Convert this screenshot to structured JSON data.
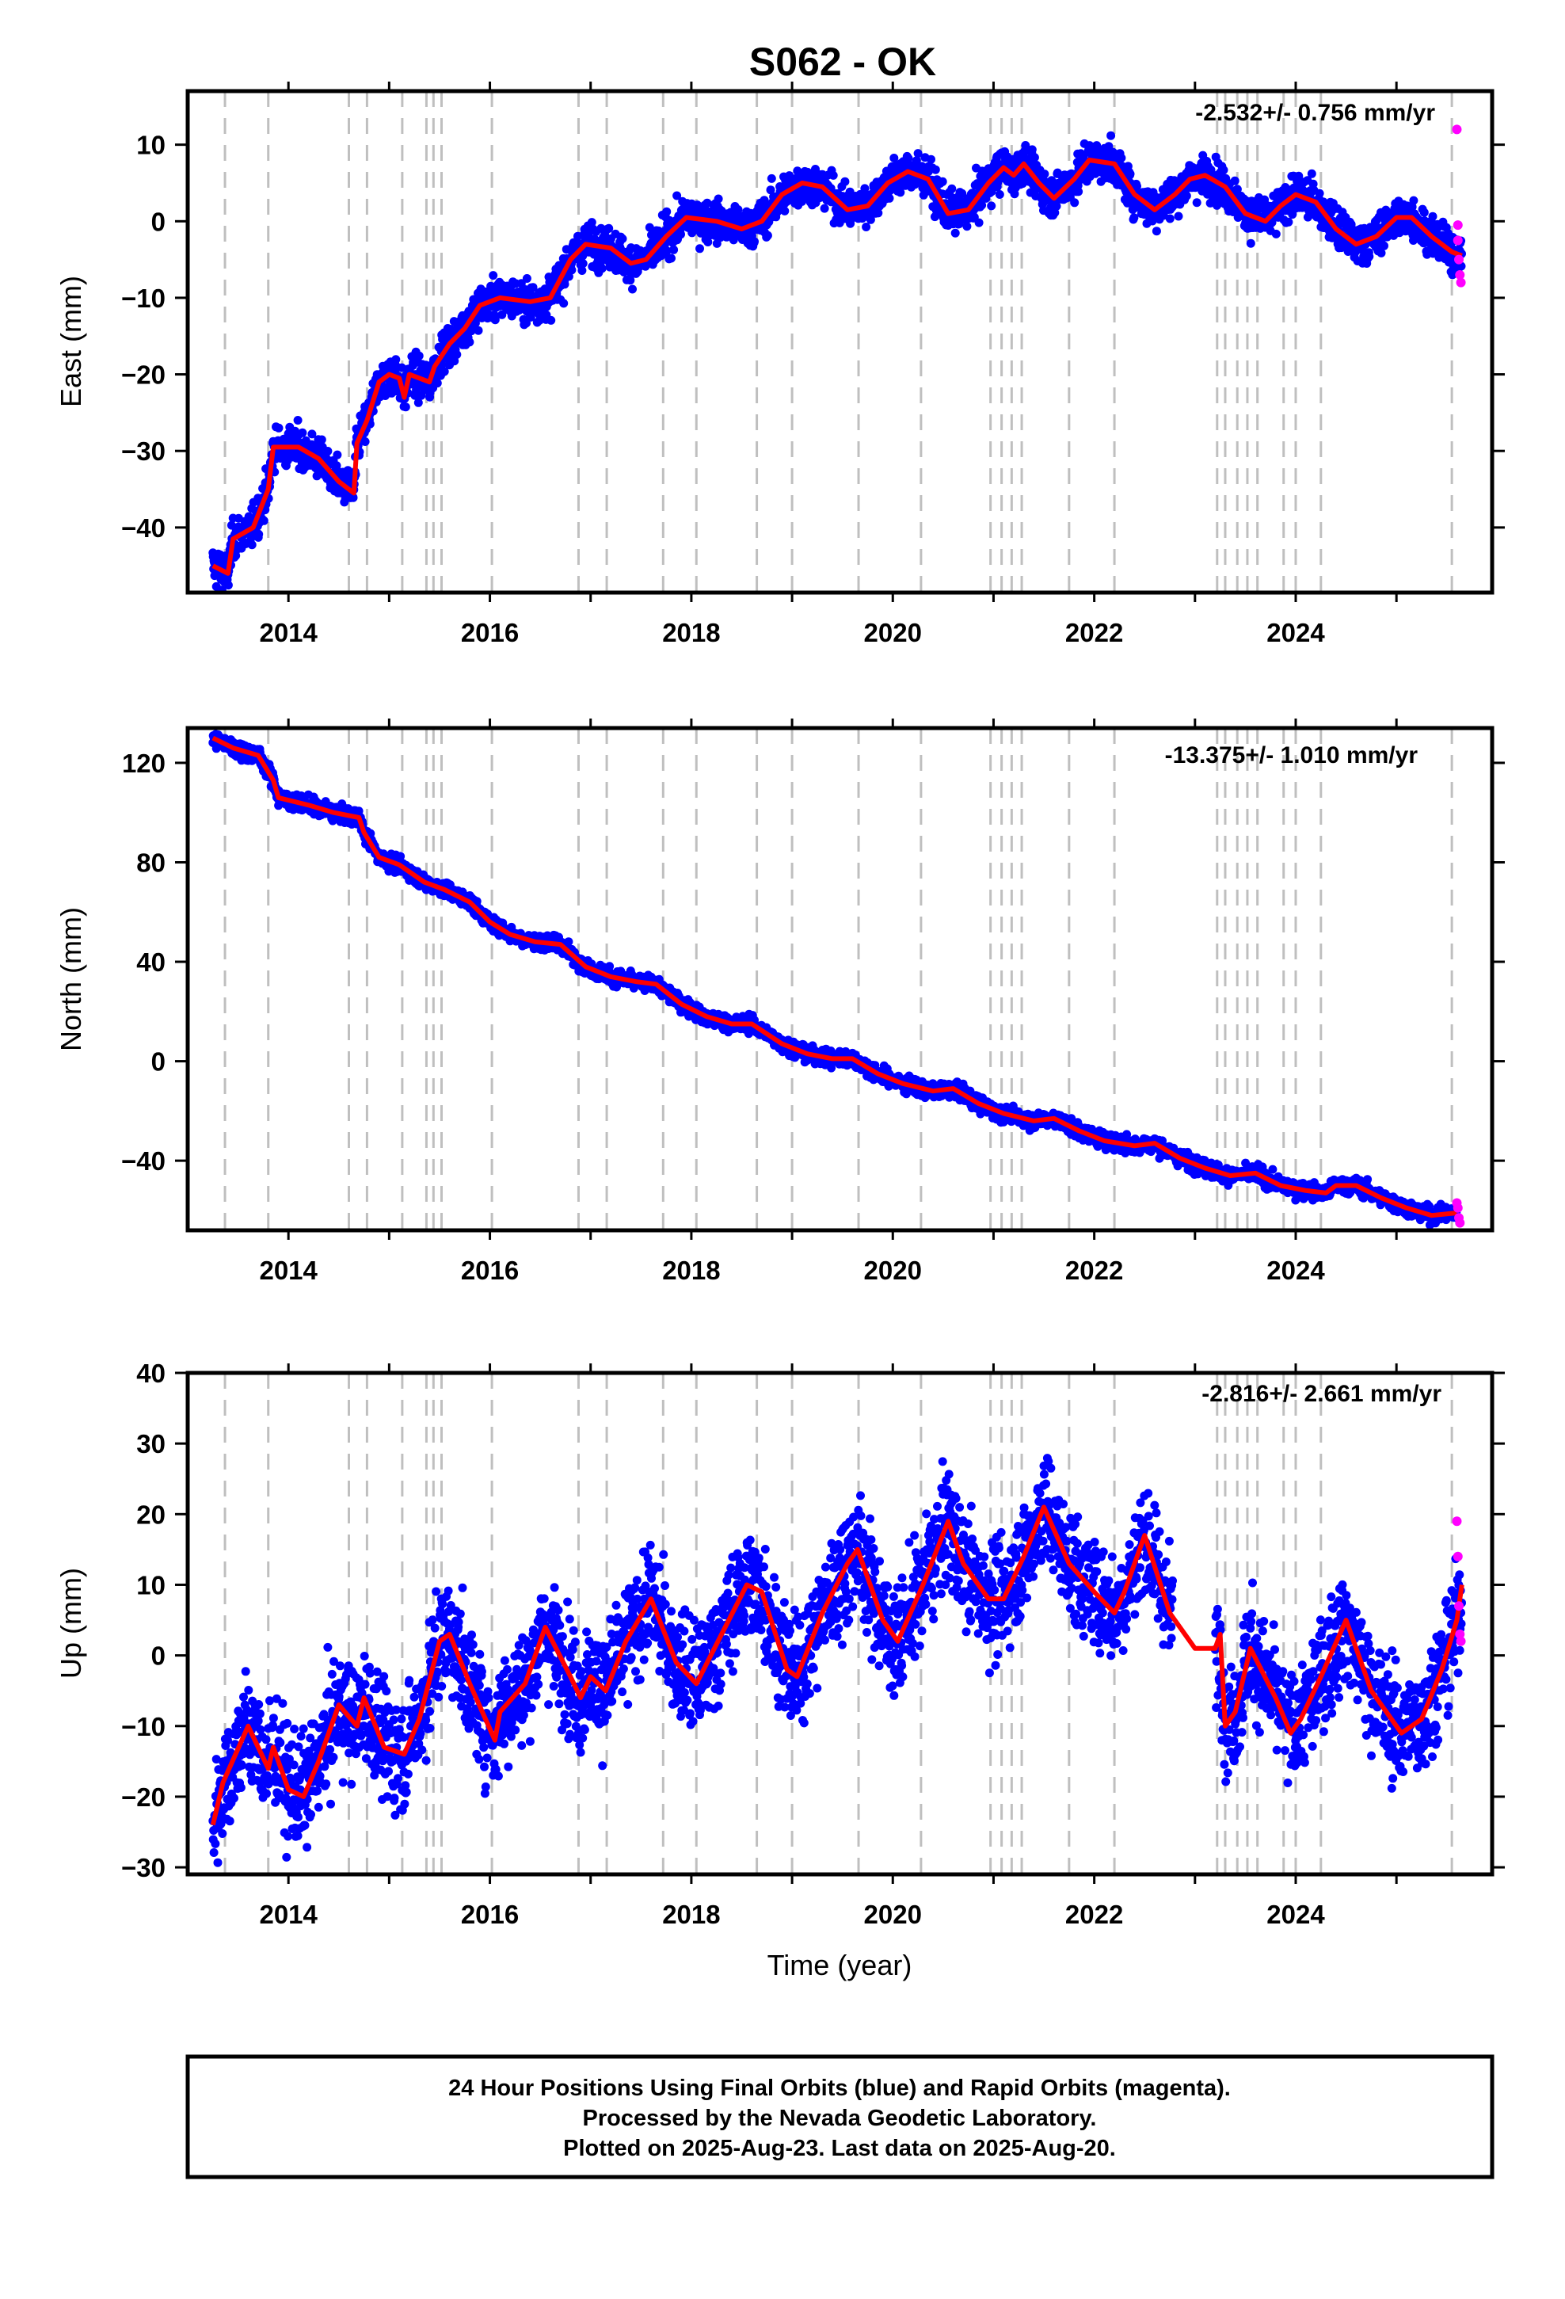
{
  "title": "S062 - OK",
  "x_axis_label": "Time (year)",
  "footer": {
    "line1": "24 Hour Positions Using Final Orbits (blue) and Rapid Orbits (magenta).",
    "line2": "Processed by the Nevada Geodetic Laboratory.",
    "line3": "Plotted on 2025-Aug-23. Last data on 2025-Aug-20."
  },
  "colors": {
    "final": "#0000ff",
    "rapid": "#ff00ff",
    "model": "#ff0000",
    "events": "#bfbfbf"
  },
  "chart_data": [
    {
      "type": "scatter",
      "panel": "east",
      "ylabel": "East (mm)",
      "rate": "-2.532+/- 0.756 mm/yr",
      "xlim": [
        2013.0,
        2025.95
      ],
      "ylim": [
        -48.5,
        17
      ],
      "xticks": [
        2014,
        2016,
        2018,
        2020,
        2022,
        2024
      ],
      "yticks": [
        -40,
        -30,
        -20,
        -10,
        0,
        10
      ],
      "trend": [
        [
          2013.25,
          -45
        ],
        [
          2013.4,
          -46
        ],
        [
          2013.45,
          -41.5
        ],
        [
          2013.65,
          -40
        ],
        [
          2013.8,
          -35
        ],
        [
          2013.85,
          -29.5
        ],
        [
          2014.1,
          -29.5
        ],
        [
          2014.3,
          -31
        ],
        [
          2014.5,
          -34
        ],
        [
          2014.65,
          -35.5
        ],
        [
          2014.68,
          -29
        ],
        [
          2014.78,
          -26
        ],
        [
          2014.9,
          -21
        ],
        [
          2015.0,
          -20
        ],
        [
          2015.1,
          -20.5
        ],
        [
          2015.15,
          -23
        ],
        [
          2015.2,
          -20
        ],
        [
          2015.4,
          -21
        ],
        [
          2015.45,
          -19
        ],
        [
          2015.6,
          -16
        ],
        [
          2015.75,
          -14
        ],
        [
          2015.9,
          -11
        ],
        [
          2016.1,
          -10
        ],
        [
          2016.4,
          -10.5
        ],
        [
          2016.6,
          -10
        ],
        [
          2016.8,
          -5
        ],
        [
          2016.95,
          -3
        ],
        [
          2017.2,
          -3.5
        ],
        [
          2017.4,
          -5.5
        ],
        [
          2017.55,
          -5
        ],
        [
          2017.75,
          -2
        ],
        [
          2017.95,
          0.5
        ],
        [
          2018.25,
          0
        ],
        [
          2018.5,
          -1
        ],
        [
          2018.7,
          0
        ],
        [
          2018.9,
          3.5
        ],
        [
          2019.1,
          5
        ],
        [
          2019.3,
          4.5
        ],
        [
          2019.55,
          1.5
        ],
        [
          2019.75,
          2
        ],
        [
          2019.95,
          5
        ],
        [
          2020.15,
          6.5
        ],
        [
          2020.35,
          5.5
        ],
        [
          2020.55,
          1
        ],
        [
          2020.75,
          1.5
        ],
        [
          2020.95,
          5
        ],
        [
          2021.1,
          7
        ],
        [
          2021.2,
          6
        ],
        [
          2021.3,
          7.5
        ],
        [
          2021.45,
          5
        ],
        [
          2021.6,
          3
        ],
        [
          2021.8,
          5.5
        ],
        [
          2021.95,
          8
        ],
        [
          2022.2,
          7.5
        ],
        [
          2022.4,
          3.5
        ],
        [
          2022.6,
          1.5
        ],
        [
          2022.8,
          3.5
        ],
        [
          2022.95,
          5.5
        ],
        [
          2023.1,
          6
        ],
        [
          2023.3,
          4.5
        ],
        [
          2023.5,
          1
        ],
        [
          2023.7,
          0
        ],
        [
          2023.85,
          2
        ],
        [
          2024.0,
          3.5
        ],
        [
          2024.2,
          2.5
        ],
        [
          2024.4,
          -1
        ],
        [
          2024.6,
          -3
        ],
        [
          2024.8,
          -2
        ],
        [
          2025.0,
          0.5
        ],
        [
          2025.15,
          0.5
        ],
        [
          2025.35,
          -2
        ],
        [
          2025.55,
          -4
        ],
        [
          2025.65,
          -4.5
        ]
      ],
      "rapid": [
        [
          2025.6,
          12
        ],
        [
          2025.61,
          -0.5
        ],
        [
          2025.61,
          -2.5
        ],
        [
          2025.62,
          -5
        ],
        [
          2025.63,
          -7
        ],
        [
          2025.64,
          -8
        ]
      ]
    },
    {
      "type": "scatter",
      "panel": "north",
      "ylabel": "North (mm)",
      "rate": "-13.375+/- 1.010 mm/yr",
      "xlim": [
        2013.0,
        2025.95
      ],
      "ylim": [
        -68,
        134
      ],
      "xticks": [
        2014,
        2016,
        2018,
        2020,
        2022,
        2024
      ],
      "yticks": [
        -40,
        0,
        40,
        80,
        120
      ],
      "trend": [
        [
          2013.25,
          130
        ],
        [
          2013.45,
          126
        ],
        [
          2013.7,
          123
        ],
        [
          2013.85,
          113
        ],
        [
          2013.9,
          106
        ],
        [
          2014.2,
          103
        ],
        [
          2014.45,
          100
        ],
        [
          2014.7,
          98
        ],
        [
          2014.75,
          92
        ],
        [
          2014.9,
          82
        ],
        [
          2015.1,
          79
        ],
        [
          2015.35,
          72
        ],
        [
          2015.55,
          69
        ],
        [
          2015.8,
          64
        ],
        [
          2016.0,
          56
        ],
        [
          2016.2,
          51
        ],
        [
          2016.45,
          48
        ],
        [
          2016.7,
          47
        ],
        [
          2016.95,
          38
        ],
        [
          2017.2,
          34
        ],
        [
          2017.45,
          32
        ],
        [
          2017.65,
          31
        ],
        [
          2017.9,
          23
        ],
        [
          2018.15,
          18
        ],
        [
          2018.4,
          15
        ],
        [
          2018.6,
          15
        ],
        [
          2018.9,
          7
        ],
        [
          2019.15,
          3
        ],
        [
          2019.4,
          1
        ],
        [
          2019.6,
          1
        ],
        [
          2019.85,
          -5
        ],
        [
          2020.1,
          -9
        ],
        [
          2020.4,
          -12
        ],
        [
          2020.6,
          -11
        ],
        [
          2020.85,
          -17
        ],
        [
          2021.1,
          -21
        ],
        [
          2021.4,
          -24
        ],
        [
          2021.6,
          -23
        ],
        [
          2021.85,
          -28
        ],
        [
          2022.1,
          -32
        ],
        [
          2022.4,
          -34
        ],
        [
          2022.6,
          -33
        ],
        [
          2022.85,
          -39
        ],
        [
          2023.1,
          -43
        ],
        [
          2023.35,
          -46
        ],
        [
          2023.6,
          -45
        ],
        [
          2023.85,
          -50
        ],
        [
          2024.1,
          -52
        ],
        [
          2024.3,
          -53
        ],
        [
          2024.4,
          -50
        ],
        [
          2024.6,
          -50
        ],
        [
          2024.85,
          -55
        ],
        [
          2025.1,
          -59
        ],
        [
          2025.35,
          -62
        ],
        [
          2025.6,
          -61
        ]
      ],
      "rapid": [
        [
          2025.6,
          -57
        ],
        [
          2025.61,
          -59
        ],
        [
          2025.62,
          -63
        ],
        [
          2025.63,
          -65
        ]
      ]
    },
    {
      "type": "scatter",
      "panel": "up",
      "ylabel": "Up (mm)",
      "rate": "-2.816+/- 2.661 mm/yr",
      "xlim": [
        2013.0,
        2025.95
      ],
      "ylim": [
        -31,
        40
      ],
      "xticks": [
        2014,
        2016,
        2018,
        2020,
        2022,
        2024
      ],
      "yticks": [
        -30,
        -20,
        -10,
        0,
        10,
        20,
        30,
        40
      ],
      "trend": [
        [
          2013.25,
          -24
        ],
        [
          2013.35,
          -18
        ],
        [
          2013.6,
          -10
        ],
        [
          2013.8,
          -16
        ],
        [
          2013.85,
          -13
        ],
        [
          2014.0,
          -19
        ],
        [
          2014.15,
          -20
        ],
        [
          2014.3,
          -15
        ],
        [
          2014.5,
          -7
        ],
        [
          2014.68,
          -10
        ],
        [
          2014.75,
          -6
        ],
        [
          2014.95,
          -13
        ],
        [
          2015.15,
          -14
        ],
        [
          2015.3,
          -9
        ],
        [
          2015.5,
          2
        ],
        [
          2015.6,
          3
        ],
        [
          2015.8,
          -4
        ],
        [
          2016.05,
          -12
        ],
        [
          2016.1,
          -8
        ],
        [
          2016.35,
          -4
        ],
        [
          2016.55,
          4
        ],
        [
          2016.8,
          -3
        ],
        [
          2016.9,
          -6
        ],
        [
          2017.0,
          -3
        ],
        [
          2017.15,
          -5
        ],
        [
          2017.35,
          2
        ],
        [
          2017.6,
          8
        ],
        [
          2017.85,
          -1
        ],
        [
          2018.05,
          -4
        ],
        [
          2018.3,
          3
        ],
        [
          2018.55,
          10
        ],
        [
          2018.7,
          9
        ],
        [
          2018.95,
          -2
        ],
        [
          2019.05,
          -3
        ],
        [
          2019.3,
          6
        ],
        [
          2019.55,
          13
        ],
        [
          2019.65,
          15
        ],
        [
          2019.9,
          5
        ],
        [
          2020.05,
          2
        ],
        [
          2020.3,
          10
        ],
        [
          2020.55,
          19
        ],
        [
          2020.7,
          13
        ],
        [
          2020.95,
          8
        ],
        [
          2021.1,
          8
        ],
        [
          2021.3,
          14
        ],
        [
          2021.5,
          21
        ],
        [
          2021.75,
          13
        ],
        [
          2022.0,
          9
        ],
        [
          2022.2,
          6
        ],
        [
          2022.3,
          9
        ],
        [
          2022.5,
          17
        ],
        [
          2022.75,
          6
        ],
        [
          2023.0,
          1
        ],
        [
          2023.2,
          1
        ],
        [
          2023.25,
          3
        ],
        [
          2023.3,
          -10
        ],
        [
          2023.4,
          -8
        ],
        [
          2023.55,
          1
        ],
        [
          2023.8,
          -6
        ],
        [
          2023.95,
          -11
        ],
        [
          2024.05,
          -9
        ],
        [
          2024.25,
          -3
        ],
        [
          2024.5,
          5
        ],
        [
          2024.75,
          -5
        ],
        [
          2025.05,
          -11
        ],
        [
          2025.25,
          -9
        ],
        [
          2025.45,
          -2
        ],
        [
          2025.6,
          5
        ],
        [
          2025.65,
          10
        ]
      ],
      "rapid": [
        [
          2025.6,
          19
        ],
        [
          2025.61,
          14
        ],
        [
          2025.62,
          7
        ],
        [
          2025.63,
          3
        ],
        [
          2025.64,
          2
        ]
      ]
    }
  ]
}
